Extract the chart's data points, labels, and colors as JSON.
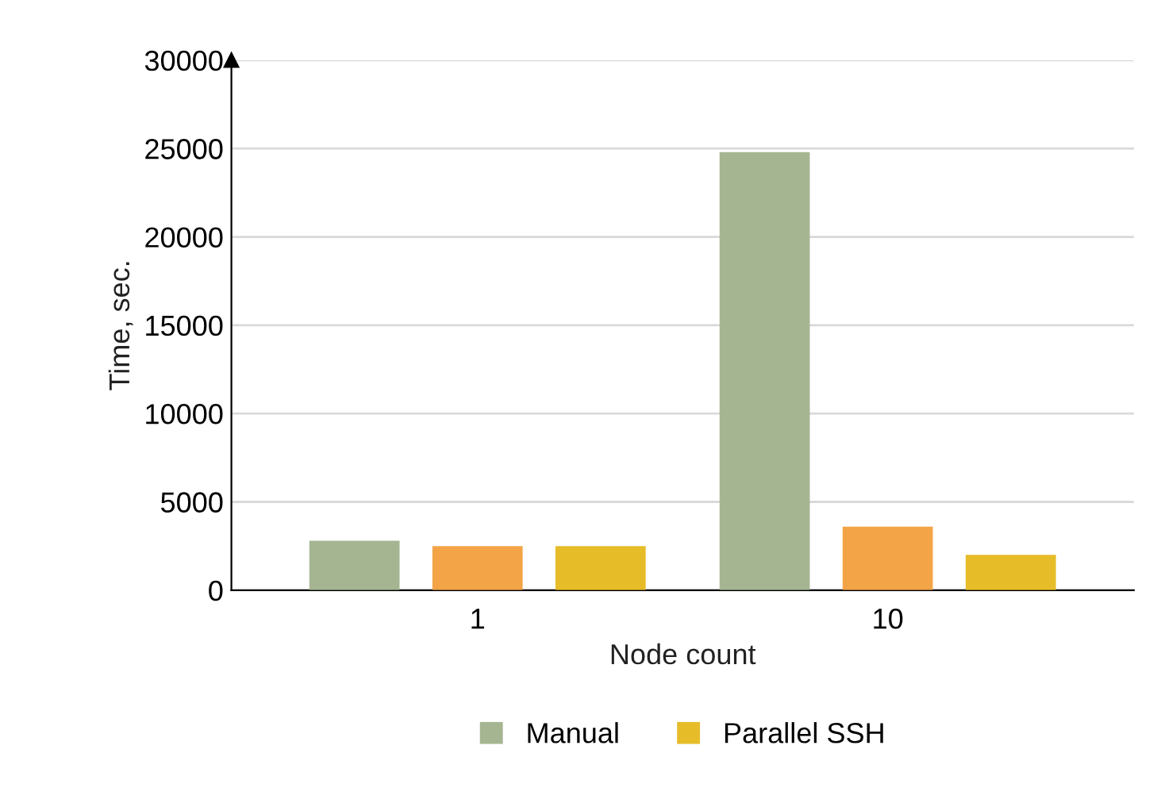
{
  "chart_data": {
    "type": "bar",
    "xlabel": "Node count",
    "ylabel": "Time, sec.",
    "categories": [
      "1",
      "10"
    ],
    "series": [
      {
        "name": "Manual",
        "color": "#a5b592",
        "values": [
          2800,
          24800
        ]
      },
      {
        "color": "#f3a447",
        "values": [
          2500,
          3600
        ]
      },
      {
        "name": "Parallel SSH",
        "color": "#e7bc29",
        "values": [
          2500,
          2000
        ]
      }
    ],
    "ylim": [
      0,
      30000
    ],
    "yticks": [
      0,
      5000,
      10000,
      15000,
      20000,
      25000,
      30000
    ],
    "grid": "y",
    "legend": "bottom"
  }
}
